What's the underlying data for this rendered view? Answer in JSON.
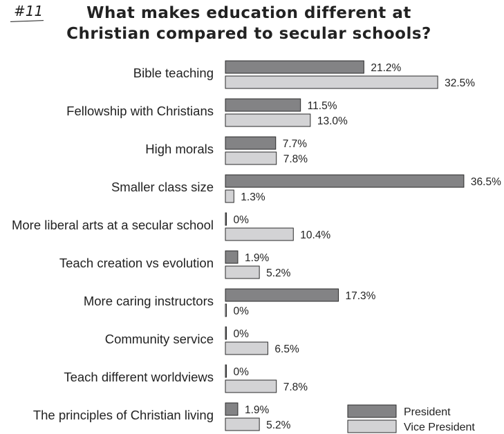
{
  "page_number": "#11",
  "chart_data": {
    "type": "bar",
    "orientation": "horizontal",
    "title_lines": [
      "What makes education different at",
      "Christian compared to secular schools?"
    ],
    "categories": [
      "Bible teaching",
      "Fellowship with Christians",
      "High morals",
      "Smaller class size",
      "More liberal arts at a secular school",
      "Teach creation vs evolution",
      "More caring instructors",
      "Community service",
      "Teach different worldviews",
      "The principles of Christian living"
    ],
    "series": [
      {
        "name": "President",
        "color": "#838385",
        "values": [
          21.2,
          11.5,
          7.7,
          36.5,
          0,
          1.9,
          17.3,
          0,
          0,
          1.9
        ],
        "labels": [
          "21.2%",
          "11.5%",
          "7.7%",
          "36.5%",
          "0%",
          "1.9%",
          "17.3%",
          "0%",
          "0%",
          "1.9%"
        ]
      },
      {
        "name": "Vice President",
        "color": "#d3d3d5",
        "values": [
          32.5,
          13.0,
          7.8,
          1.3,
          10.4,
          5.2,
          0,
          6.5,
          7.8,
          5.2
        ],
        "labels": [
          "32.5%",
          "13.0%",
          "7.8%",
          "1.3%",
          "10.4%",
          "5.2%",
          "0%",
          "6.5%",
          "7.8%",
          "5.2%"
        ]
      }
    ],
    "value_unit": "%",
    "legend": "bottom-right",
    "grid": false,
    "axes_visible": false
  }
}
